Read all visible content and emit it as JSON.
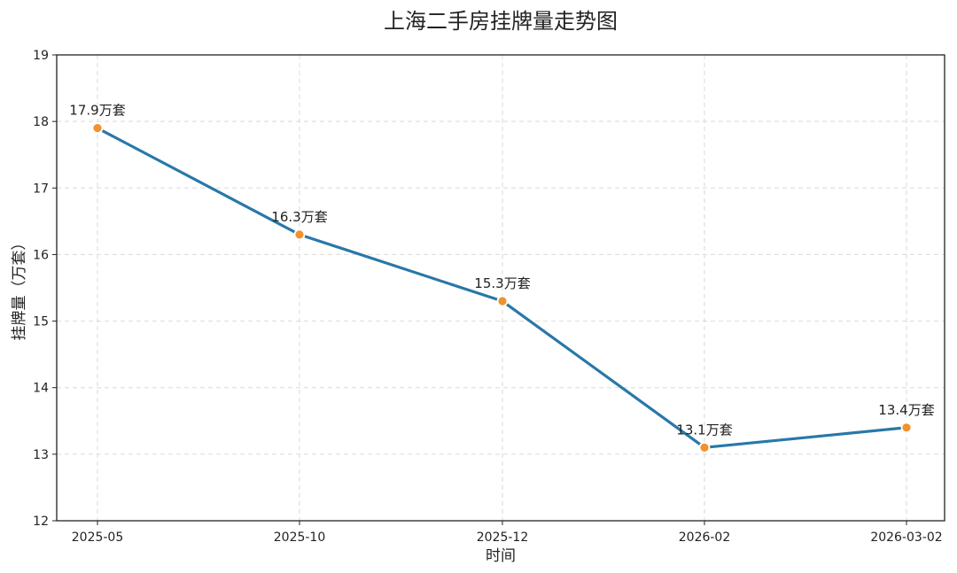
{
  "chart_data": {
    "type": "line",
    "title": "上海二手房挂牌量走势图",
    "xlabel": "时间",
    "ylabel": "挂牌量（万套）",
    "categories": [
      "2025-05",
      "2025-10",
      "2025-12",
      "2026-02",
      "2026-03-02"
    ],
    "series": [
      {
        "values": [
          17.9,
          16.3,
          15.3,
          13.1,
          13.4
        ]
      }
    ],
    "data_labels": [
      "17.9万套",
      "16.3万套",
      "15.3万套",
      "13.1万套",
      "13.4万套"
    ],
    "ylim": [
      12,
      19
    ],
    "yticks": [
      "12",
      "13",
      "14",
      "15",
      "16",
      "17",
      "18",
      "19"
    ],
    "grid": true,
    "colors": {
      "line": "#2878a8",
      "marker": "#f0922e",
      "marker_edge": "#ffffff"
    }
  }
}
